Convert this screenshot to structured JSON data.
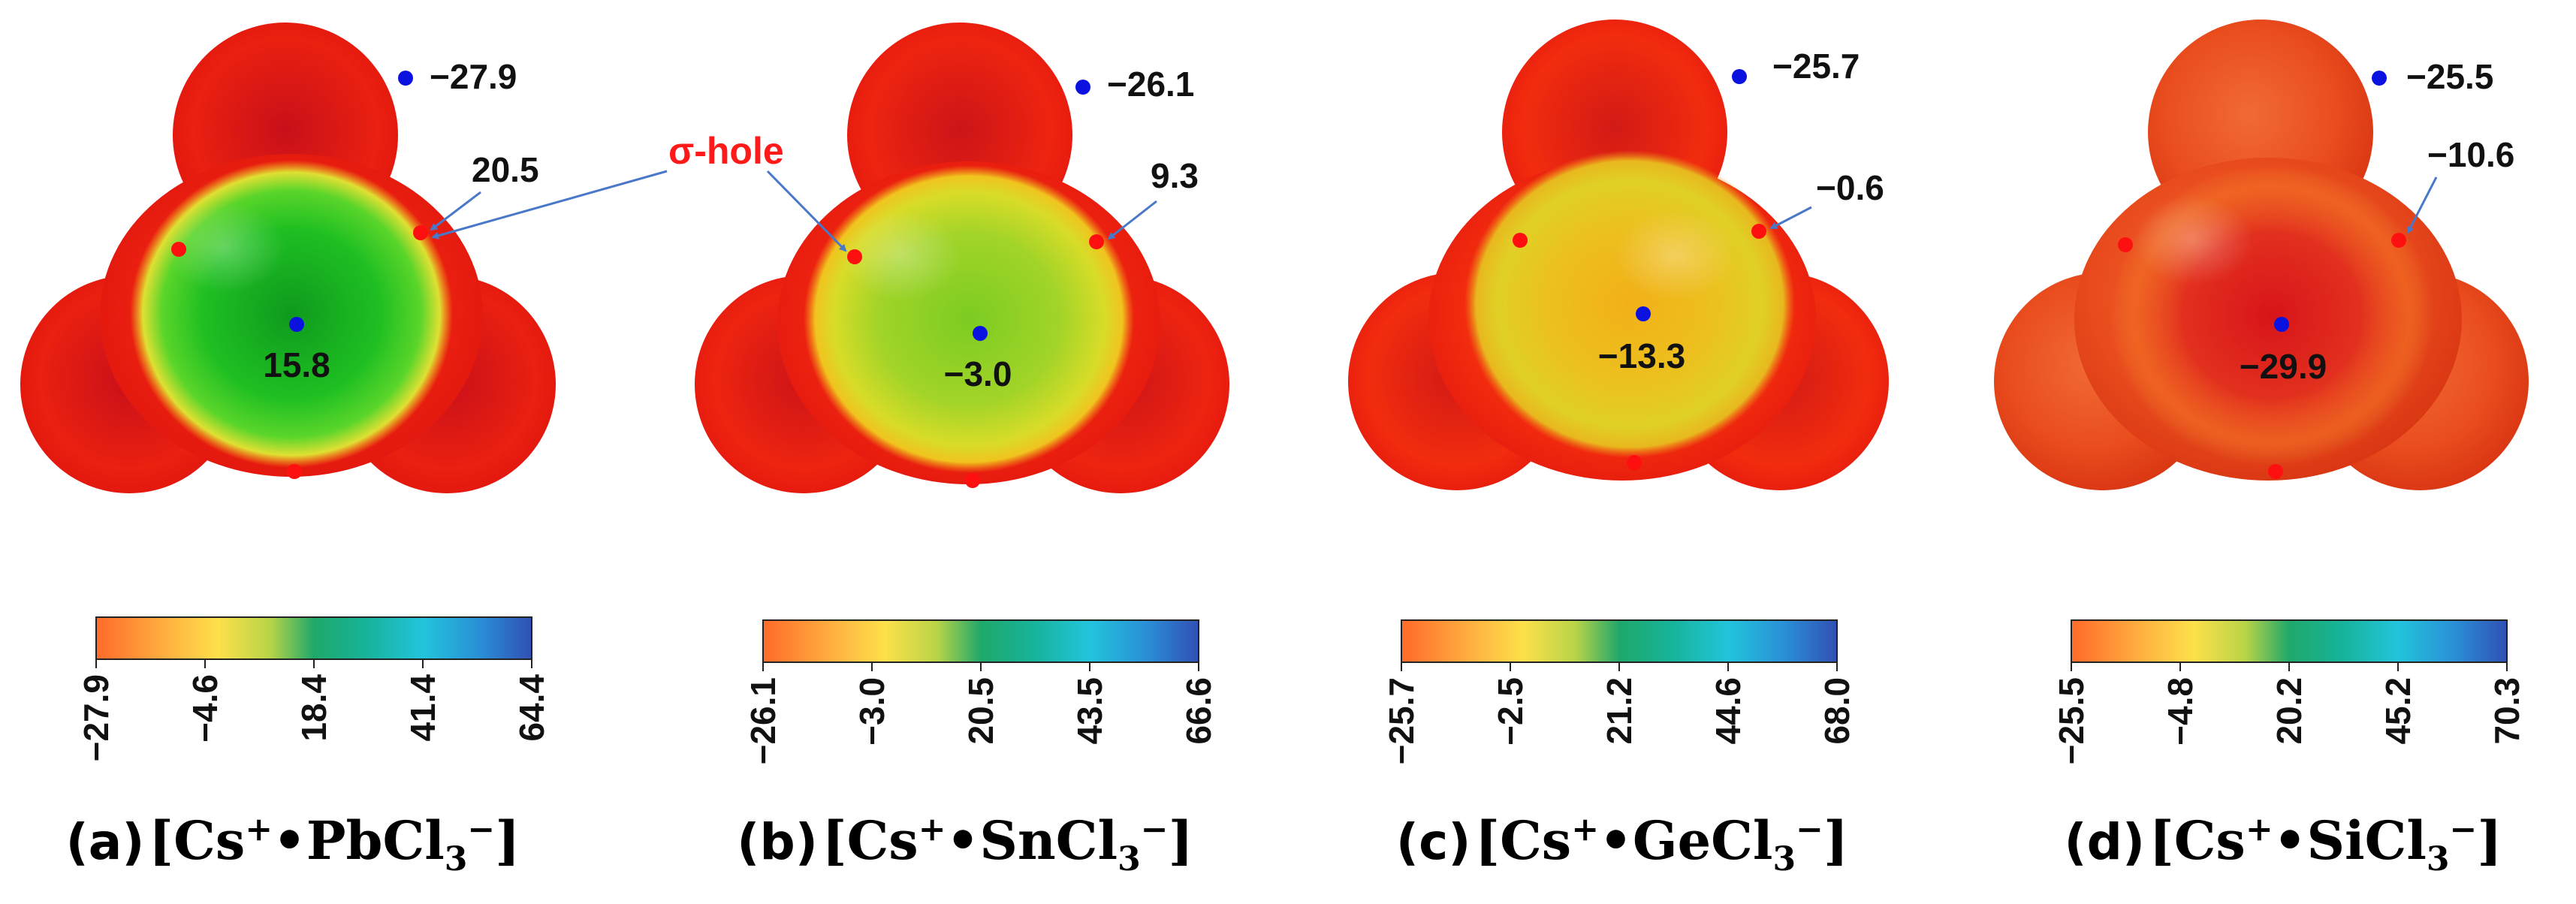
{
  "sigma_hole_label": "σ-hole",
  "colors": {
    "surface_red": "#e81e0e",
    "surface_orange": "#fb4c10",
    "surface_yellow": "#e6e21e",
    "surface_green": "#2ecb2a",
    "point_min": "#0b12e0",
    "point_max": "#ff1010",
    "arrow": "#4a78c8",
    "sigma_label": "#ff1a1a"
  },
  "colorbar_colors": [
    "#ff6b2c",
    "#ffdc50",
    "#22b46e",
    "#22c4e0",
    "#2e58c2"
  ],
  "panels": [
    {
      "letter": "(a)",
      "formula": {
        "cation": "Cs",
        "cation_charge": "+",
        "bullet": "•",
        "anion": "PbCl",
        "subscript": "3",
        "anion_charge": "−"
      },
      "top_value": "−27.9",
      "side_value": "20.5",
      "center_value": "15.8",
      "colorbar_ticks": [
        "−27.9",
        "−4.6",
        "18.4",
        "41.4",
        "64.4"
      ]
    },
    {
      "letter": "(b)",
      "formula": {
        "cation": "Cs",
        "cation_charge": "+",
        "bullet": "•",
        "anion": "SnCl",
        "subscript": "3",
        "anion_charge": "−"
      },
      "top_value": "−26.1",
      "side_value": "9.3",
      "center_value": "−3.0",
      "colorbar_ticks": [
        "−26.1",
        "−3.0",
        "20.5",
        "43.5",
        "66.6"
      ]
    },
    {
      "letter": "(c)",
      "formula": {
        "cation": "Cs",
        "cation_charge": "+",
        "bullet": "•",
        "anion": "GeCl",
        "subscript": "3",
        "anion_charge": "−"
      },
      "top_value": "−25.7",
      "side_value": "−0.6",
      "center_value": "−13.3",
      "colorbar_ticks": [
        "−25.7",
        "−2.5",
        "21.2",
        "44.6",
        "68.0"
      ]
    },
    {
      "letter": "(d)",
      "formula": {
        "cation": "Cs",
        "cation_charge": "+",
        "bullet": "•",
        "anion": "SiCl",
        "subscript": "3",
        "anion_charge": "−"
      },
      "top_value": "−25.5",
      "side_value": "−10.6",
      "center_value": "−29.9",
      "colorbar_ticks": [
        "−25.5",
        "−4.8",
        "20.2",
        "45.2",
        "70.3"
      ]
    }
  ]
}
